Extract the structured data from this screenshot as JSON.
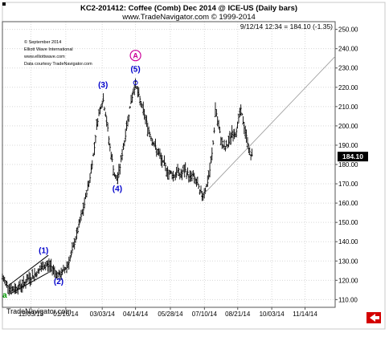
{
  "chart_data": {
    "type": "ohlc",
    "title": "KC2-201412:  Coffee (Comb) Dec 2014 @ ICE-US  (Daily bars)",
    "subtitle": "www.TradeNavigator.com © 1999-2014",
    "info_line": "9/12/14 12:34 = 184.10 (-1.35)",
    "last_price_label": "184.10",
    "credits": [
      "© September 2014",
      "Elliott Wave International",
      "www.elliottwave.com",
      "Data courtesy TradeNavigator.com"
    ],
    "watermark": "TradeNavigator.com",
    "xlabel": "",
    "ylabel": "",
    "y_ticks": [
      110.0,
      120.0,
      130.0,
      140.0,
      150.0,
      160.0,
      170.0,
      180.0,
      190.0,
      200.0,
      210.0,
      220.0,
      230.0,
      240.0,
      250.0
    ],
    "y_tick_labels": [
      "110.00",
      "120.00",
      "130.00",
      "140.00",
      "150.00",
      "160.00",
      "170.00",
      "180.00",
      "190.00",
      "200.00",
      "210.00",
      "220.00",
      "230.00",
      "240.00",
      "250.00"
    ],
    "ylim": [
      106,
      254
    ],
    "x_range": [
      0,
      420
    ],
    "x_ticks": [
      {
        "label": "12/03/13",
        "day": 36
      },
      {
        "label": "01/16/14",
        "day": 80
      },
      {
        "label": "03/03/14",
        "day": 126
      },
      {
        "label": "04/14/14",
        "day": 168
      },
      {
        "label": "05/28/14",
        "day": 212
      },
      {
        "label": "07/10/14",
        "day": 255
      },
      {
        "label": "08/21/14",
        "day": 297
      },
      {
        "label": "10/03/14",
        "day": 340
      },
      {
        "label": "11/14/14",
        "day": 382
      }
    ],
    "price_path": [
      [
        0,
        121
      ],
      [
        6,
        118
      ],
      [
        12,
        115
      ],
      [
        17,
        116
      ],
      [
        22,
        117
      ],
      [
        27,
        118
      ],
      [
        33,
        121
      ],
      [
        38,
        122
      ],
      [
        44,
        124
      ],
      [
        48,
        126
      ],
      [
        52,
        127
      ],
      [
        56,
        128
      ],
      [
        62,
        127
      ],
      [
        66,
        125
      ],
      [
        71,
        122
      ],
      [
        76,
        124
      ],
      [
        82,
        128
      ],
      [
        87,
        133
      ],
      [
        92,
        141
      ],
      [
        96,
        147
      ],
      [
        99,
        152
      ],
      [
        103,
        158
      ],
      [
        106,
        165
      ],
      [
        110,
        172
      ],
      [
        113,
        180
      ],
      [
        116,
        188
      ],
      [
        118,
        197
      ],
      [
        121,
        205
      ],
      [
        124,
        210
      ],
      [
        127,
        214
      ],
      [
        130,
        207
      ],
      [
        133,
        198
      ],
      [
        136,
        188
      ],
      [
        139,
        181
      ],
      [
        142,
        173
      ],
      [
        145,
        172
      ],
      [
        148,
        178
      ],
      [
        151,
        185
      ],
      [
        154,
        192
      ],
      [
        157,
        200
      ],
      [
        160,
        207
      ],
      [
        163,
        214
      ],
      [
        166,
        219
      ],
      [
        168,
        222
      ],
      [
        171,
        217
      ],
      [
        174,
        213
      ],
      [
        177,
        209
      ],
      [
        180,
        205
      ],
      [
        183,
        200
      ],
      [
        186,
        196
      ],
      [
        189,
        193
      ],
      [
        192,
        190
      ],
      [
        195,
        187
      ],
      [
        198,
        185
      ],
      [
        201,
        182
      ],
      [
        204,
        180
      ],
      [
        207,
        178
      ],
      [
        210,
        175
      ],
      [
        213,
        176
      ],
      [
        216,
        174
      ],
      [
        219,
        175
      ],
      [
        222,
        177
      ],
      [
        225,
        174
      ],
      [
        228,
        176
      ],
      [
        231,
        177
      ],
      [
        234,
        175
      ],
      [
        237,
        173
      ],
      [
        240,
        175
      ],
      [
        243,
        172
      ],
      [
        246,
        170
      ],
      [
        249,
        166
      ],
      [
        252,
        164
      ],
      [
        255,
        166
      ],
      [
        258,
        169
      ],
      [
        261,
        175
      ],
      [
        264,
        183
      ],
      [
        267,
        195
      ],
      [
        269,
        210
      ],
      [
        272,
        201
      ],
      [
        275,
        195
      ],
      [
        278,
        190
      ],
      [
        281,
        188
      ],
      [
        284,
        190
      ],
      [
        287,
        193
      ],
      [
        290,
        197
      ],
      [
        293,
        195
      ],
      [
        296,
        199
      ],
      [
        299,
        205
      ],
      [
        301,
        208
      ],
      [
        304,
        202
      ],
      [
        307,
        196
      ],
      [
        310,
        191
      ],
      [
        312,
        186
      ],
      [
        315,
        184
      ]
    ],
    "channel_lines": [
      {
        "from": [
          10,
          118
        ],
        "to": [
          58,
          133
        ]
      },
      {
        "from": [
          10,
          113
        ],
        "to": [
          58,
          124
        ]
      }
    ],
    "trend_line": {
      "from": [
        255,
        165
      ],
      "to": [
        420,
        236
      ]
    },
    "wave_labels": [
      {
        "text": "a",
        "day": 3,
        "price": 111,
        "color": "#009900"
      },
      {
        "text": "(1)",
        "day": 52,
        "price": 134,
        "color": "#0000cc"
      },
      {
        "text": "(2)",
        "day": 71,
        "price": 118,
        "color": "#0000cc"
      },
      {
        "text": "(3)",
        "day": 127,
        "price": 220,
        "color": "#0000cc"
      },
      {
        "text": "(4)",
        "day": 145,
        "price": 166,
        "color": "#0000cc"
      },
      {
        "text": "(5)",
        "day": 168,
        "price": 228,
        "color": "#0000cc"
      },
      {
        "text": "A",
        "day": 168,
        "price": 235,
        "color": "#cc0099",
        "circled": true
      }
    ],
    "colors": {
      "bars": "#000000",
      "wave": "#0000cc",
      "circle": "#cc0099",
      "minor_a": "#009900",
      "trend": "#999999",
      "arrow": "#cc0000"
    }
  }
}
